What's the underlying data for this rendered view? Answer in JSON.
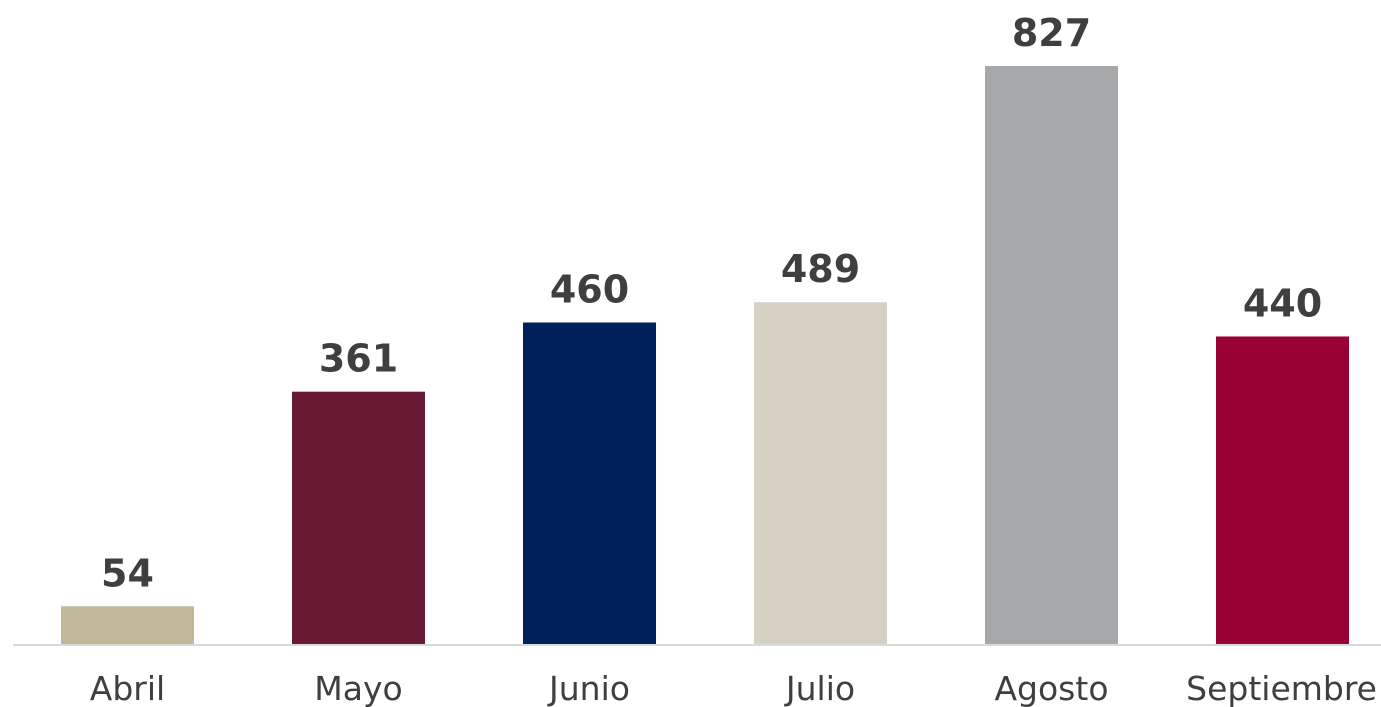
{
  "chart_data": {
    "type": "bar",
    "title": "",
    "xlabel": "",
    "ylabel": "",
    "ylim": [
      0,
      827
    ],
    "grid": false,
    "legend": "none",
    "categories": [
      "Abril",
      "Mayo",
      "Junio",
      "Julio",
      "Agosto",
      "Septiembre"
    ],
    "values": [
      54,
      361,
      460,
      489,
      827,
      440
    ],
    "value_labels": [
      "54",
      "361",
      "460",
      "489",
      "827",
      "440"
    ],
    "colors": [
      "#c1b898",
      "#671a31",
      "#00205b",
      "#d5d1c4",
      "#a7a8aa",
      "#990033"
    ],
    "axis_color": "#d9d9d9",
    "text_color": "#3f3f3f"
  }
}
